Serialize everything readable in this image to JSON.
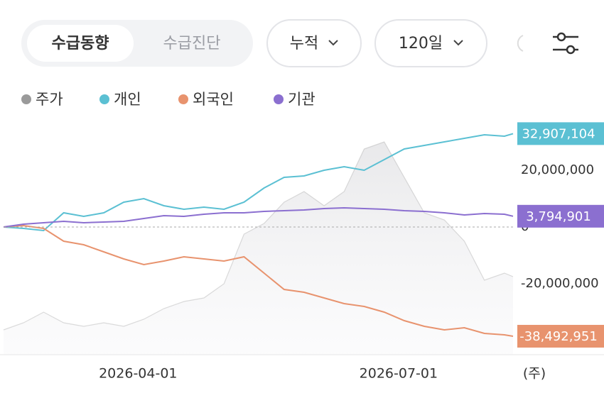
{
  "tabs": [
    "수급동향",
    "수급진단"
  ],
  "controls": [
    "누적",
    "120일"
  ],
  "chart_data": {
    "type": "line",
    "x": [
      "2026-02-13",
      "2026-02-20",
      "2026-02-27",
      "2026-03-06",
      "2026-03-13",
      "2026-03-20",
      "2026-03-27",
      "2026-04-03",
      "2026-04-10",
      "2026-04-17",
      "2026-04-24",
      "2026-05-01",
      "2026-05-08",
      "2026-05-15",
      "2026-05-22",
      "2026-05-29",
      "2026-06-05",
      "2026-06-12",
      "2026-06-19",
      "2026-06-26",
      "2026-07-03",
      "2026-07-10",
      "2026-07-17",
      "2026-07-24",
      "2026-07-31",
      "2026-08-07",
      "2026-08-10"
    ],
    "xlim": [
      "2026-02-13",
      "2026-08-10"
    ],
    "xticks": [
      "2026-04-01",
      "2026-07-01"
    ],
    "x_unit_label": "(주)",
    "ylim": [
      -45000000,
      37500000
    ],
    "yticks": [
      {
        "value": 20000000,
        "label": "20,000,000"
      },
      0,
      {
        "value": -20000000,
        "label": "-20,000,000"
      }
    ],
    "grid": false,
    "series": [
      {
        "name": "주가",
        "color": "#9a9a9a",
        "area": true,
        "values": [
          -36250000,
          -33750000,
          -30000000,
          -33750000,
          -35000000,
          -33750000,
          -35000000,
          -32500000,
          -28750000,
          -26250000,
          -25000000,
          -20000000,
          -2500000,
          1250000,
          8750000,
          12500000,
          7500000,
          12500000,
          27500000,
          30000000,
          17500000,
          5000000,
          2500000,
          -5000000,
          -18750000,
          -16250000,
          -17500000
        ]
      },
      {
        "name": "개인",
        "color": "#5bc0d3",
        "values": [
          0,
          -500000,
          -1250000,
          5000000,
          3750000,
          5000000,
          8750000,
          10000000,
          7500000,
          6250000,
          7000000,
          6250000,
          8750000,
          13750000,
          17500000,
          18000000,
          20000000,
          21250000,
          20000000,
          23750000,
          27500000,
          28750000,
          30000000,
          31250000,
          32500000,
          32000000,
          32907104
        ],
        "value_labels": [
          null,
          null,
          null,
          null,
          null,
          null,
          null,
          null,
          null,
          null,
          null,
          null,
          null,
          null,
          null,
          null,
          null,
          null,
          null,
          null,
          null,
          null,
          null,
          null,
          null,
          null,
          "32,907,104"
        ]
      },
      {
        "name": "외국인",
        "color": "#e8936e",
        "values": [
          0,
          500000,
          -500000,
          -5000000,
          -6250000,
          -8750000,
          -11250000,
          -13250000,
          -12000000,
          -10500000,
          -11250000,
          -12000000,
          -10500000,
          -16250000,
          -22000000,
          -23000000,
          -25000000,
          -27000000,
          -28000000,
          -30000000,
          -33000000,
          -35000000,
          -36250000,
          -35500000,
          -37500000,
          -38000000,
          -38492951
        ],
        "value_labels": [
          null,
          null,
          null,
          null,
          null,
          null,
          null,
          null,
          null,
          null,
          null,
          null,
          null,
          null,
          null,
          null,
          null,
          null,
          null,
          null,
          null,
          null,
          null,
          null,
          null,
          null,
          "-38,492,951"
        ]
      },
      {
        "name": "기관",
        "color": "#8b6fd0",
        "values": [
          0,
          1000000,
          1500000,
          2000000,
          1500000,
          1750000,
          2000000,
          3000000,
          4000000,
          3750000,
          4500000,
          5000000,
          5000000,
          5500000,
          5750000,
          6000000,
          6500000,
          6750000,
          6500000,
          6250000,
          5750000,
          5500000,
          5000000,
          4250000,
          4750000,
          4500000,
          3794901
        ],
        "value_labels": [
          null,
          null,
          null,
          null,
          null,
          null,
          null,
          null,
          null,
          null,
          null,
          null,
          null,
          null,
          null,
          null,
          null,
          null,
          null,
          null,
          null,
          null,
          null,
          null,
          null,
          null,
          "3,794,901"
        ]
      }
    ]
  }
}
